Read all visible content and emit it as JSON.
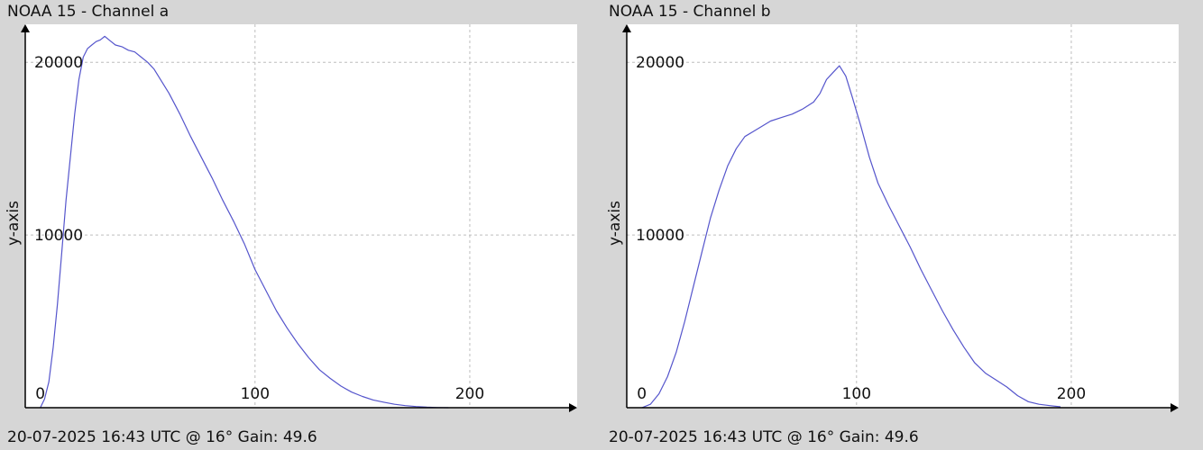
{
  "chart_data": [
    {
      "type": "line",
      "title": "NOAA 15 - Channel a",
      "status": "20-07-2025 16:43 UTC @ 16° Gain: 49.6",
      "xlabel": "",
      "ylabel": "y-axis",
      "xlim": [
        -7,
        250
      ],
      "ylim": [
        0,
        22200
      ],
      "xticks": [
        0,
        100,
        200
      ],
      "yticks": [
        10000,
        20000
      ],
      "grid": true,
      "color": "#5555cc",
      "series": [
        {
          "x": [
            0,
            2,
            4,
            6,
            8,
            10,
            12,
            14,
            16,
            18,
            20,
            22,
            24,
            26,
            28,
            30,
            32,
            35,
            38,
            41,
            44,
            47,
            50,
            53,
            56,
            60,
            65,
            70,
            75,
            80,
            85,
            90,
            95,
            100,
            105,
            110,
            115,
            120,
            125,
            130,
            135,
            140,
            145,
            150,
            155,
            160,
            165,
            170,
            175,
            180,
            185,
            190
          ],
          "y": [
            0,
            500,
            1500,
            3500,
            6000,
            9000,
            12000,
            14500,
            17000,
            19000,
            20300,
            20800,
            21000,
            21200,
            21300,
            21500,
            21300,
            21000,
            20900,
            20700,
            20600,
            20300,
            20000,
            19600,
            19000,
            18200,
            17000,
            15700,
            14500,
            13300,
            12000,
            10800,
            9500,
            8000,
            6800,
            5600,
            4600,
            3700,
            2900,
            2200,
            1700,
            1250,
            900,
            650,
            450,
            320,
            200,
            120,
            70,
            30,
            10,
            0
          ]
        }
      ]
    },
    {
      "type": "line",
      "title": "NOAA 15 - Channel b",
      "status": "20-07-2025 16:43 UTC @ 16° Gain: 49.6",
      "xlabel": "",
      "ylabel": "y-axis",
      "xlim": [
        -7,
        250
      ],
      "ylim": [
        0,
        22200
      ],
      "xticks": [
        0,
        100,
        200
      ],
      "yticks": [
        10000,
        20000
      ],
      "grid": true,
      "color": "#5555cc",
      "series": [
        {
          "x": [
            0,
            4,
            8,
            12,
            16,
            20,
            24,
            28,
            32,
            36,
            40,
            44,
            48,
            52,
            56,
            60,
            65,
            70,
            75,
            80,
            83,
            86,
            89,
            92,
            95,
            98,
            102,
            106,
            110,
            115,
            120,
            125,
            130,
            135,
            140,
            145,
            150,
            155,
            160,
            165,
            170,
            175,
            180,
            185,
            190,
            195
          ],
          "y": [
            0,
            200,
            800,
            1800,
            3200,
            5000,
            7000,
            9000,
            11000,
            12600,
            14000,
            15000,
            15700,
            16000,
            16300,
            16600,
            16800,
            17000,
            17300,
            17700,
            18200,
            19000,
            19400,
            19800,
            19200,
            18000,
            16300,
            14500,
            13000,
            11700,
            10500,
            9300,
            8000,
            6800,
            5600,
            4500,
            3500,
            2600,
            2000,
            1600,
            1200,
            700,
            350,
            200,
            120,
            50
          ]
        }
      ]
    }
  ]
}
